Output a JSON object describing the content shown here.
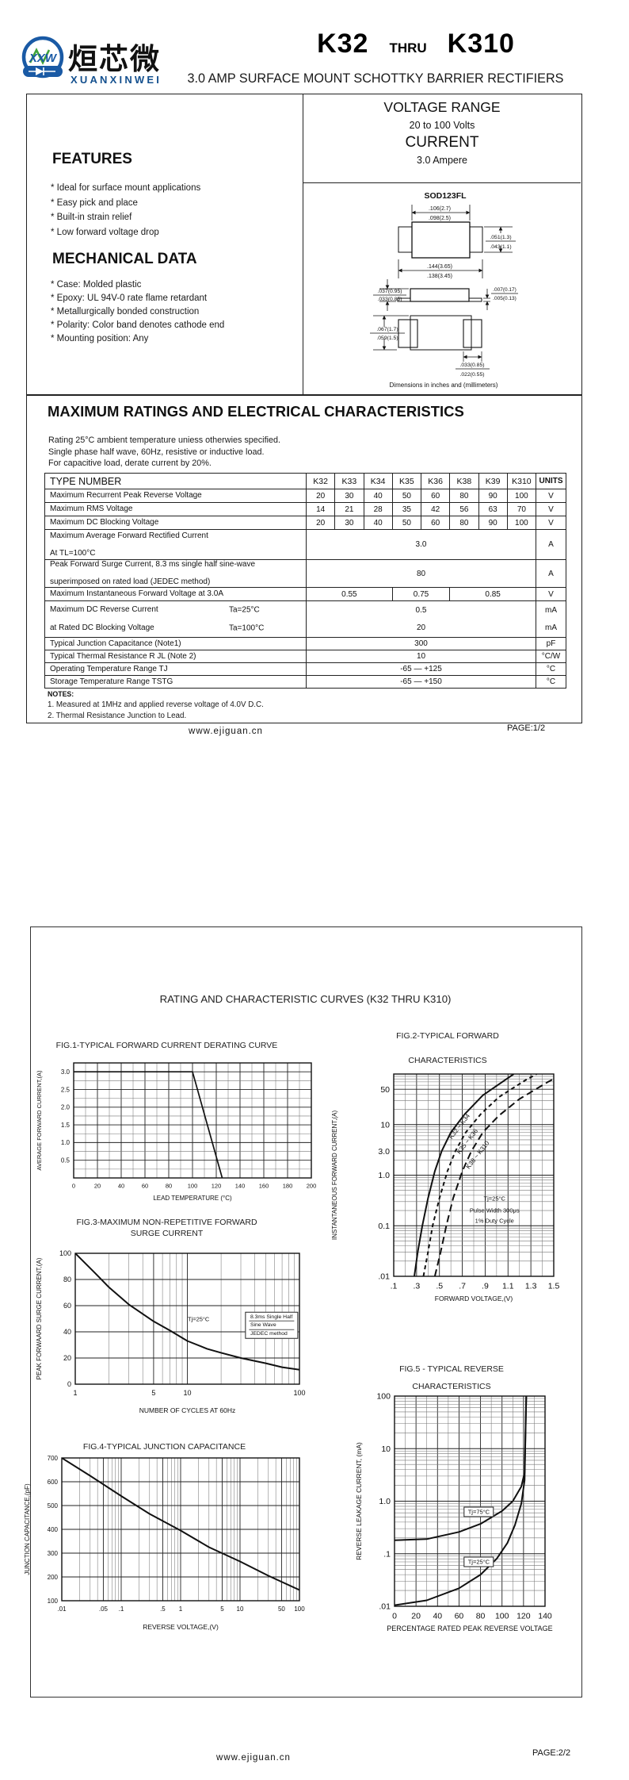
{
  "page1": {
    "logo": {
      "xxw": "XXW",
      "cn": "烜芯微",
      "en": "XUANXINWEI"
    },
    "title_k32": "K32",
    "title_thru": "THRU",
    "title_k310": "K310",
    "subtitle": "3.0 AMP SURFACE MOUNT SCHOTTKY BARRIER RECTIFIERS",
    "features": {
      "heading": "FEATURES",
      "items": [
        "* Ideal for surface mount applications",
        "* Easy pick and place",
        "* Built-in strain relief",
        "* Low forward voltage drop"
      ]
    },
    "mechanical": {
      "heading": "MECHANICAL DATA",
      "items": [
        "* Case: Molded plastic",
        "* Epoxy: UL 94V-0 rate flame retardant",
        "* Metallurgically bonded construction",
        "* Polarity: Color band denotes cathode end",
        "* Mounting position: Any"
      ]
    },
    "range_box": {
      "voltage_range_label": "VOLTAGE RANGE",
      "voltage_range_value": "20 to 100 Volts",
      "current_label": "CURRENT",
      "current_value": "3.0 Ampere"
    },
    "package": {
      "name": "SOD123FL",
      "caption": "Dimensions in inches and (millimeters)",
      "dims": {
        "top_width_a": ".106(2.7)",
        "top_width_b": ".098(2.5)",
        "right_h_a": ".051(1.3)",
        "right_h_b": ".043(1.1)",
        "bottom_w_a": ".144(3.65)",
        "bottom_w_b": ".138(3.45)",
        "side_left_a": ".037(0.95)",
        "side_left_b": ".033(0.85)",
        "side_right_a": ".007(0.17)",
        "side_right_b": ".005(0.13)",
        "bot_left_a": ".067(1.7)",
        "bot_left_b": ".059(1.5)",
        "bot_pad_a": ".033(0.85)",
        "bot_pad_b": ".022(0.55)"
      }
    },
    "max_ratings": {
      "heading": "MAXIMUM RATINGS AND ELECTRICAL CHARACTERISTICS",
      "conditions": [
        "Rating 25°C ambient temperature uniess otherwies specified.",
        "Single phase half wave, 60Hz, resistive or inductive load.",
        "For capacitive load, derate current by 20%."
      ],
      "table": {
        "type_number_label": "TYPE NUMBER",
        "columns": [
          "K32",
          "K33",
          "K34",
          "K35",
          "K36",
          "K38",
          "K39",
          "K310"
        ],
        "units_label": "UNITS",
        "rows": [
          {
            "label": "Maximum Recurrent Peak Reverse Voltage",
            "cells": [
              {
                "t": "20"
              },
              {
                "t": "30"
              },
              {
                "t": "40"
              },
              {
                "t": "50"
              },
              {
                "t": "60"
              },
              {
                "t": "80"
              },
              {
                "t": "90"
              },
              {
                "t": "100"
              }
            ],
            "unit": "V"
          },
          {
            "label": "Maximum RMS Voltage",
            "cells": [
              {
                "t": "14"
              },
              {
                "t": "21"
              },
              {
                "t": "28"
              },
              {
                "t": "35"
              },
              {
                "t": "42"
              },
              {
                "t": "56"
              },
              {
                "t": "63"
              },
              {
                "t": "70"
              }
            ],
            "unit": "V"
          },
          {
            "label": "Maximum DC Blocking Voltage",
            "cells": [
              {
                "t": "20"
              },
              {
                "t": "30"
              },
              {
                "t": "40"
              },
              {
                "t": "50"
              },
              {
                "t": "60"
              },
              {
                "t": "80"
              },
              {
                "t": "90"
              },
              {
                "t": "100"
              }
            ],
            "unit": "V"
          },
          {
            "label": "Maximum Average Forward Rectified Current",
            "label2": "At TL=100°C",
            "cells": [
              {
                "t": "3.0",
                "span": 8
              }
            ],
            "unit": "A"
          },
          {
            "label": "Peak Forward Surge Current, 8.3 ms single half sine-wave",
            "label2": "superimposed on rated load (JEDEC method)",
            "cells": [
              {
                "t": "80",
                "span": 8
              }
            ],
            "unit": "A"
          },
          {
            "label": "Maximum Instantaneous Forward Voltage at 3.0A",
            "cells": [
              {
                "t": "0.55",
                "span": 3
              },
              {
                "t": "0.75",
                "span": 2
              },
              {
                "t": "0.85",
                "span": 3
              }
            ],
            "unit": "V"
          },
          {
            "label": "Maximum DC Reverse Current",
            "ta": "Ta=25°C",
            "cells": [
              {
                "t": "0.5",
                "span": 8
              }
            ],
            "unit": "mA",
            "joinBelow": true
          },
          {
            "label": "at Rated DC Blocking Voltage",
            "ta": "Ta=100°C",
            "cells": [
              {
                "t": "20",
                "span": 8
              }
            ],
            "unit": "mA",
            "joinAbove": true
          },
          {
            "label": "Typical Junction Capacitance (Note1)",
            "cells": [
              {
                "t": "300",
                "span": 8
              }
            ],
            "unit": "pF"
          },
          {
            "label": "Typical Thermal Resistance R JL (Note 2)",
            "cells": [
              {
                "t": "10",
                "span": 8
              }
            ],
            "unit": "°C/W"
          },
          {
            "label": "Operating Temperature Range TJ",
            "cells": [
              {
                "t": "-65 — +125",
                "span": 8
              }
            ],
            "unit": "°C"
          },
          {
            "label": "Storage Temperature Range TSTG",
            "cells": [
              {
                "t": "-65 — +150",
                "span": 8
              }
            ],
            "unit": "°C"
          }
        ]
      },
      "notes": {
        "heading": "NOTES:",
        "items": [
          "1. Measured at 1MHz and applied reverse voltage of 4.0V D.C.",
          "2. Thermal Resistance Junction to Lead."
        ]
      }
    },
    "footer": {
      "site": "www.ejiguan.cn",
      "page": "PAGE:1/2"
    }
  },
  "page2": {
    "title": "RATING AND CHARACTERISTIC CURVES (K32 THRU K310)",
    "footer": {
      "site": "www.ejiguan.cn",
      "page": "PAGE:2/2"
    }
  },
  "chart_data": [
    {
      "id": "fig1",
      "type": "line",
      "title": "FIG.1-TYPICAL FORWARD CURRENT DERATING CURVE",
      "xlabel": "LEAD TEMPERATURE (°C)",
      "ylabel": "AVERAGE FORWARD CURRENT,(A)",
      "x": {
        "type": "linear",
        "min": 0,
        "max": 200,
        "grid_step": 10,
        "ticks": [
          0,
          20,
          40,
          60,
          80,
          100,
          120,
          140,
          160,
          180,
          200
        ]
      },
      "y": {
        "type": "linear",
        "min": 0,
        "max": 3.25,
        "grid_step": 0.25,
        "ticks": [
          0.5,
          1,
          1.5,
          2,
          2.5,
          3
        ],
        "tick_labels": [
          "0.5",
          "1.0",
          "1.5",
          "2.0",
          "2.5",
          "3.0"
        ]
      },
      "series": [
        {
          "name": "derating",
          "points": [
            [
              0,
              3
            ],
            [
              100,
              3
            ],
            [
              125,
              0
            ]
          ]
        }
      ]
    },
    {
      "id": "fig2",
      "type": "line",
      "title": "FIG.2-TYPICAL FORWARD",
      "title2": "CHARACTERISTICS",
      "xlabel": "FORWARD VOLTAGE,(V)",
      "ylabel": "INSTANTANEOUS FORWARD CURRENT,(A)",
      "x": {
        "type": "linear",
        "min": 0.1,
        "max": 1.5,
        "grid_step": 0.1,
        "ticks": [
          0.1,
          0.3,
          0.5,
          0.7,
          0.9,
          1.1,
          1.3,
          1.5
        ],
        "tick_labels": [
          ".1",
          ".3",
          ".5",
          ".7",
          ".9",
          "1.1",
          "1.3",
          "1.5"
        ]
      },
      "y": {
        "type": "log",
        "min": 0.01,
        "max": 100,
        "ticks": [
          0.01,
          0.1,
          1,
          3,
          10,
          50
        ],
        "tick_labels": [
          ".01",
          "0.1",
          "1.0",
          "3.0",
          "10",
          "50"
        ]
      },
      "series": [
        {
          "name": "K32 ~ K34",
          "points": [
            [
              0.28,
              0.01
            ],
            [
              0.31,
              0.03
            ],
            [
              0.35,
              0.1
            ],
            [
              0.4,
              0.35
            ],
            [
              0.46,
              1.2
            ],
            [
              0.52,
              3
            ],
            [
              0.6,
              7
            ],
            [
              0.72,
              16
            ],
            [
              0.88,
              38
            ],
            [
              1.05,
              70
            ],
            [
              1.15,
              100
            ]
          ]
        },
        {
          "name": "K35 ~ K36",
          "dash": "5,4",
          "points": [
            [
              0.36,
              0.01
            ],
            [
              0.4,
              0.03
            ],
            [
              0.44,
              0.1
            ],
            [
              0.5,
              0.35
            ],
            [
              0.57,
              1.2
            ],
            [
              0.64,
              3
            ],
            [
              0.73,
              7
            ],
            [
              0.86,
              16
            ],
            [
              1.02,
              35
            ],
            [
              1.25,
              75
            ],
            [
              1.35,
              100
            ]
          ]
        },
        {
          "name": "K38 ~ K310",
          "dash": "9,5",
          "points": [
            [
              0.46,
              0.01
            ],
            [
              0.51,
              0.03
            ],
            [
              0.56,
              0.1
            ],
            [
              0.62,
              0.35
            ],
            [
              0.7,
              1.2
            ],
            [
              0.78,
              3
            ],
            [
              0.88,
              7
            ],
            [
              1.02,
              15
            ],
            [
              1.2,
              32
            ],
            [
              1.45,
              70
            ],
            [
              1.5,
              80
            ]
          ]
        }
      ],
      "curve_labels": [
        {
          "text": "K32 ~ K34",
          "fx": 0.41,
          "fy": 0.26,
          "rot": -52
        },
        {
          "text": "K35 ~ K36",
          "fx": 0.46,
          "fy": 0.335,
          "rot": -52
        },
        {
          "text": "K38 ~ K310",
          "fx": 0.525,
          "fy": 0.4,
          "rot": -52
        }
      ],
      "annotations": [
        {
          "text": "Tj=25°C",
          "fx": 0.63,
          "fy": 0.615
        },
        {
          "text": "Pulse Width 300μs",
          "fx": 0.63,
          "fy": 0.675
        },
        {
          "text": "1% Duty Cycle",
          "fx": 0.63,
          "fy": 0.725
        }
      ]
    },
    {
      "id": "fig3",
      "type": "line",
      "title": "FIG.3-MAXIMUM NON-REPETITIVE FORWARD",
      "title2": "SURGE CURRENT",
      "xlabel": "NUMBER OF CYCLES AT 60Hz",
      "ylabel": "PEAK FORWAARD SURGE CURRENT,(A)",
      "x": {
        "type": "log",
        "min": 1,
        "max": 100,
        "ticks": [
          1,
          5,
          10,
          100
        ],
        "tick_labels": [
          "1",
          "5",
          "10",
          "100"
        ]
      },
      "y": {
        "type": "linear",
        "min": 0,
        "max": 100,
        "grid_step": 20,
        "ticks": [
          0,
          20,
          40,
          60,
          80,
          100
        ]
      },
      "series": [
        {
          "name": "surge",
          "points": [
            [
              1,
              100
            ],
            [
              1.5,
              85
            ],
            [
              2,
              74
            ],
            [
              3,
              61
            ],
            [
              5,
              48
            ],
            [
              7,
              41
            ],
            [
              10,
              33
            ],
            [
              15,
              27
            ],
            [
              20,
              24
            ],
            [
              30,
              20
            ],
            [
              50,
              16
            ],
            [
              70,
              13
            ],
            [
              100,
              11
            ]
          ]
        }
      ],
      "annotations": [
        {
          "text": "Tj=25°C",
          "fx": 0.55,
          "fy": 0.5
        },
        {
          "lines": [
            "8.3ms Single Half",
            "Sine Wave",
            "JEDEC method"
          ],
          "fx": 0.875,
          "fy": 0.55,
          "boxed": true
        }
      ]
    },
    {
      "id": "fig4",
      "type": "line",
      "title": "FIG.4-TYPICAL JUNCTION CAPACITANCE",
      "xlabel": "REVERSE VOLTAGE,(V)",
      "ylabel": "JUNCTION CAPACITANCE,(pF)",
      "x": {
        "type": "log",
        "min": 0.01,
        "max": 100,
        "ticks": [
          0.01,
          0.05,
          0.1,
          0.5,
          1,
          5,
          10,
          50,
          100
        ],
        "tick_labels": [
          ".01",
          ".05",
          ".1",
          ".5",
          "1",
          "5",
          "10",
          "50",
          "100"
        ]
      },
      "y": {
        "type": "linear",
        "min": 100,
        "max": 700,
        "grid_step": 100,
        "ticks": [
          100,
          200,
          300,
          400,
          500,
          600,
          700
        ],
        "tick_labels": [
          "100",
          "200",
          "300",
          "400",
          "500",
          "600",
          "700"
        ]
      },
      "series": [
        {
          "name": "capacitance",
          "points": [
            [
              0.01,
              700
            ],
            [
              0.03,
              625
            ],
            [
              0.1,
              540
            ],
            [
              0.3,
              465
            ],
            [
              1,
              395
            ],
            [
              3,
              325
            ],
            [
              10,
              265
            ],
            [
              30,
              205
            ],
            [
              100,
              145
            ]
          ]
        }
      ]
    },
    {
      "id": "fig5",
      "type": "line",
      "title": "FIG.5 - TYPICAL REVERSE",
      "title2": "CHARACTERISTICS",
      "xlabel": "PERCENTAGE RATED PEAK REVERSE VOLTAGE",
      "ylabel": "REVERSE LEAKAGE CURRENT, (mA)",
      "x": {
        "type": "linear",
        "min": 0,
        "max": 140,
        "grid_step": 10,
        "ticks": [
          0,
          20,
          40,
          60,
          80,
          100,
          120,
          140
        ]
      },
      "y": {
        "type": "log",
        "min": 0.01,
        "max": 100,
        "ticks": [
          0.01,
          0.1,
          1,
          10,
          100
        ],
        "tick_labels": [
          ".01",
          ".1",
          "1.0",
          "10",
          "100"
        ]
      },
      "series": [
        {
          "name": "Tj=75°C",
          "points": [
            [
              0,
              0.18
            ],
            [
              30,
              0.19
            ],
            [
              60,
              0.26
            ],
            [
              80,
              0.37
            ],
            [
              100,
              0.65
            ],
            [
              110,
              1.0
            ],
            [
              118,
              1.9
            ],
            [
              121,
              3.5
            ],
            [
              122.5,
              100
            ]
          ]
        },
        {
          "name": "Tj=25°C",
          "points": [
            [
              0,
              0.0105
            ],
            [
              30,
              0.013
            ],
            [
              60,
              0.022
            ],
            [
              80,
              0.04
            ],
            [
              95,
              0.08
            ],
            [
              105,
              0.16
            ],
            [
              112,
              0.35
            ],
            [
              118,
              0.9
            ],
            [
              121,
              2.5
            ],
            [
              122.5,
              100
            ]
          ]
        }
      ],
      "annotations": [
        {
          "text": "Tj=75°C",
          "fx": 0.56,
          "fy": 0.55,
          "boxed": true
        },
        {
          "text": "Tj=25°C",
          "fx": 0.56,
          "fy": 0.79,
          "boxed": true
        }
      ]
    }
  ]
}
